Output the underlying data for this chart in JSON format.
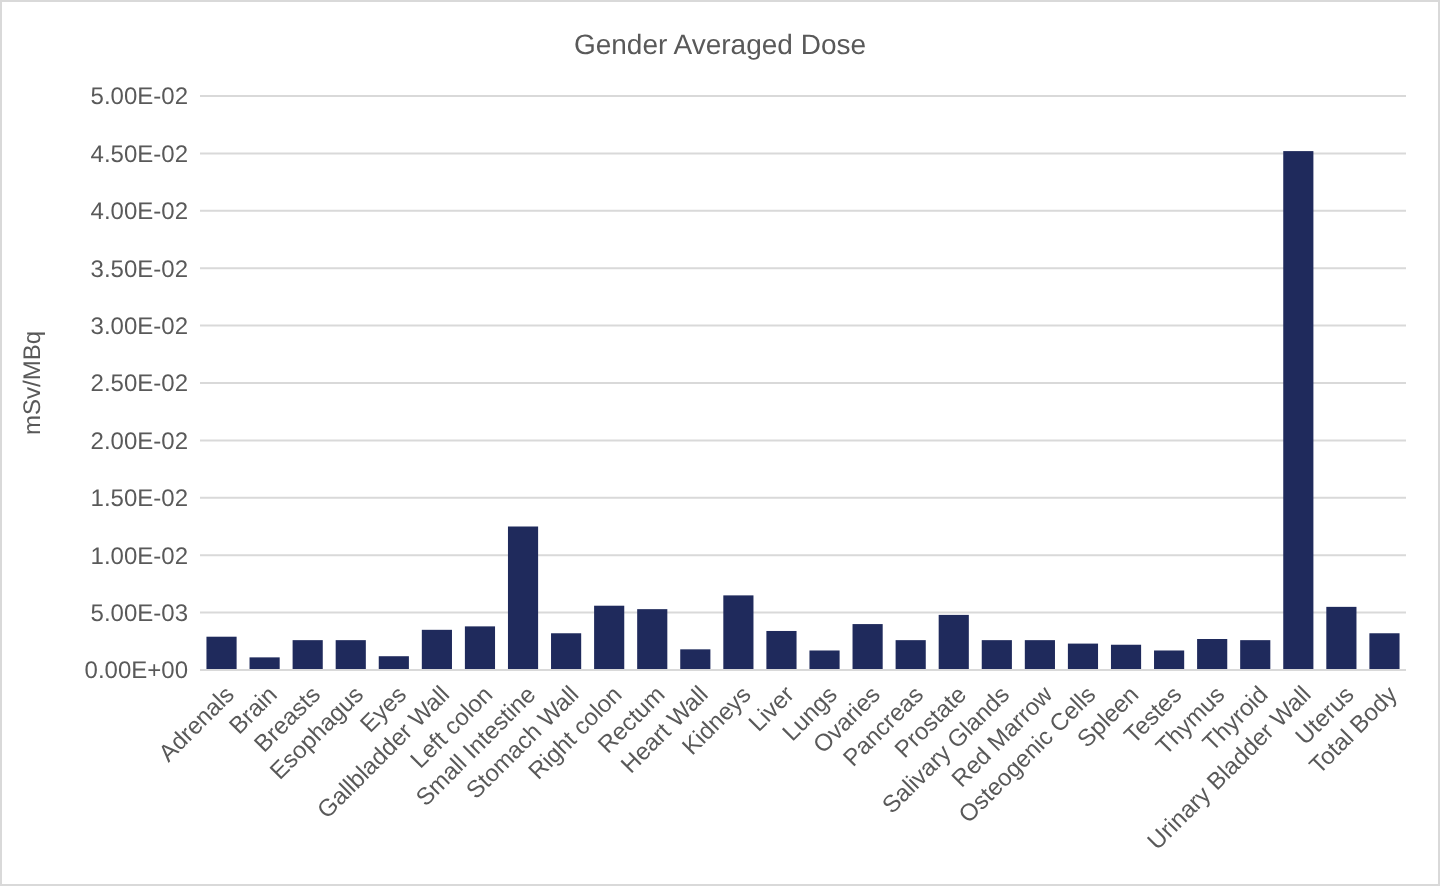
{
  "chart_data": {
    "type": "bar",
    "title": "Gender Averaged Dose",
    "ylabel": "mSv/MBq",
    "categories": [
      "Adrenals",
      "Brain",
      "Breasts",
      "Esophagus",
      "Eyes",
      "Gallbladder Wall",
      "Left colon",
      "Small Intestine",
      "Stomach Wall",
      "Right colon",
      "Rectum",
      "Heart Wall",
      "Kidneys",
      "Liver",
      "Lungs",
      "Ovaries",
      "Pancreas",
      "Prostate",
      "Salivary Glands",
      "Red Marrow",
      "Osteogenic Cells",
      "Spleen",
      "Testes",
      "Thymus",
      "Thyroid",
      "Urinary Bladder Wall",
      "Uterus",
      "Total Body"
    ],
    "values": [
      0.0029,
      0.0011,
      0.0026,
      0.0026,
      0.0012,
      0.0035,
      0.0038,
      0.0125,
      0.0032,
      0.0056,
      0.0053,
      0.0018,
      0.0065,
      0.0034,
      0.0017,
      0.004,
      0.0026,
      0.0048,
      0.0026,
      0.0026,
      0.0023,
      0.0022,
      0.0017,
      0.0027,
      0.0026,
      0.0452,
      0.0055,
      0.0032
    ],
    "color": "#1f2a5c",
    "ylim": [
      0,
      0.05
    ],
    "yticks": [
      {
        "value": 0,
        "label": "0.00E+00"
      },
      {
        "value": 0.005,
        "label": "5.00E-03"
      },
      {
        "value": 0.01,
        "label": "1.00E-02"
      },
      {
        "value": 0.015,
        "label": "1.50E-02"
      },
      {
        "value": 0.02,
        "label": "2.00E-02"
      },
      {
        "value": 0.025,
        "label": "2.50E-02"
      },
      {
        "value": 0.03,
        "label": "3.00E-02"
      },
      {
        "value": 0.035,
        "label": "3.50E-02"
      },
      {
        "value": 0.04,
        "label": "4.00E-02"
      },
      {
        "value": 0.045,
        "label": "4.50E-02"
      },
      {
        "value": 0.05,
        "label": "5.00E-02"
      }
    ],
    "grid": "y"
  }
}
